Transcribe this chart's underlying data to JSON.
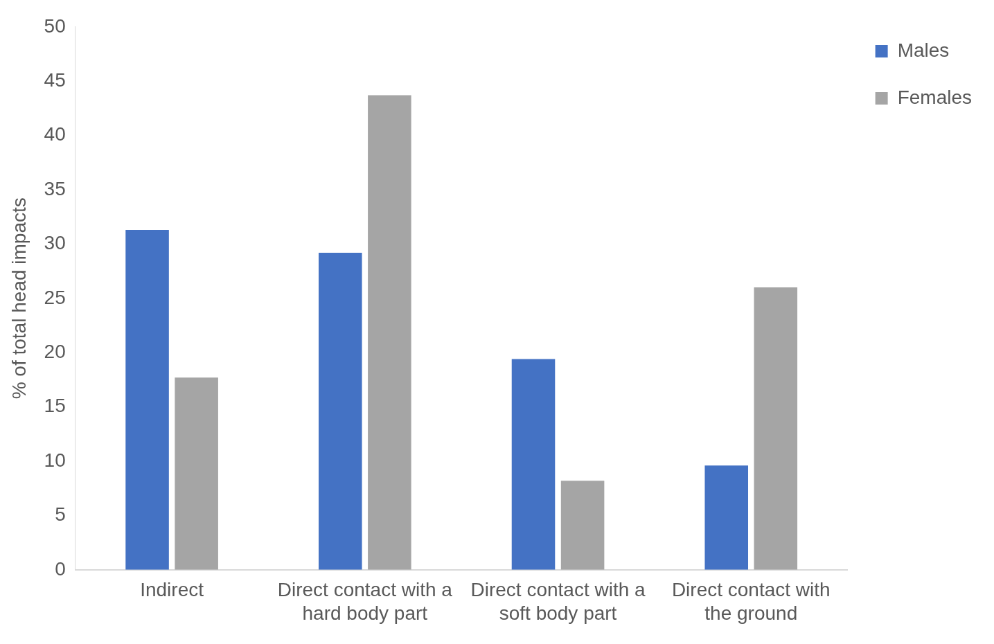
{
  "chart_data": {
    "type": "bar",
    "ylabel": "% of total head impacts",
    "categories": [
      "Indirect",
      "Direct contact with a hard body part",
      "Direct contact with a soft body part",
      "Direct contact with the ground"
    ],
    "series": [
      {
        "name": "Males",
        "color": "#4472c4",
        "values": [
          31.3,
          29.2,
          19.4,
          9.6
        ]
      },
      {
        "name": "Females",
        "color": "#a5a5a5",
        "values": [
          17.7,
          43.7,
          8.2,
          26.0
        ]
      }
    ],
    "ylim": [
      0,
      50
    ],
    "yticks": [
      0,
      5,
      10,
      15,
      20,
      25,
      30,
      35,
      40,
      45,
      50
    ],
    "grid": false,
    "legend": "top right"
  }
}
